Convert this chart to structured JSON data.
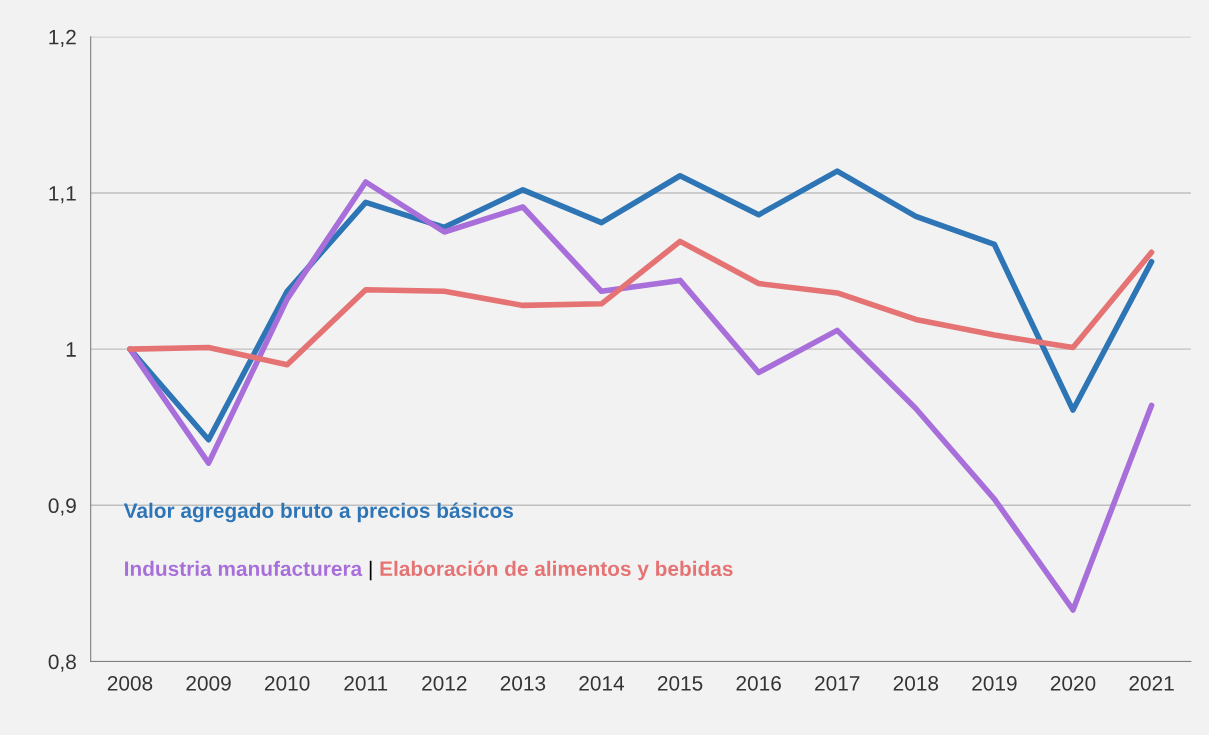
{
  "chart_data": {
    "type": "line",
    "categories": [
      "2008",
      "2009",
      "2010",
      "2011",
      "2012",
      "2013",
      "2014",
      "2015",
      "2016",
      "2017",
      "2018",
      "2019",
      "2020",
      "2021"
    ],
    "series": [
      {
        "name": "Valor agregado bruto a precios básicos",
        "color": "#2e75b6",
        "values": [
          1.0,
          0.942,
          1.037,
          1.094,
          1.078,
          1.102,
          1.081,
          1.111,
          1.086,
          1.114,
          1.085,
          1.067,
          0.961,
          1.056
        ]
      },
      {
        "name": "Industria manufacturera",
        "color": "#a86fdb",
        "values": [
          1.0,
          0.927,
          1.032,
          1.107,
          1.075,
          1.091,
          1.037,
          1.044,
          0.985,
          1.012,
          0.962,
          0.904,
          0.833,
          0.964
        ]
      },
      {
        "name": "Elaboración de alimentos y bebidas",
        "color": "#e57373",
        "values": [
          1.0,
          1.001,
          0.99,
          1.038,
          1.037,
          1.028,
          1.029,
          1.069,
          1.042,
          1.036,
          1.019,
          1.009,
          1.001,
          1.062
        ]
      }
    ],
    "ylim": [
      0.8,
      1.2
    ],
    "yticks": [
      {
        "value": 0.8,
        "label": "0,8"
      },
      {
        "value": 0.9,
        "label": "0,9"
      },
      {
        "value": 1.0,
        "label": "1"
      },
      {
        "value": 1.1,
        "label": "1,1"
      },
      {
        "value": 1.2,
        "label": "1,2"
      }
    ],
    "grid": "y",
    "legend": "bottom left",
    "marker": "none",
    "line_style": "solid",
    "annotations": [
      "|"
    ]
  }
}
